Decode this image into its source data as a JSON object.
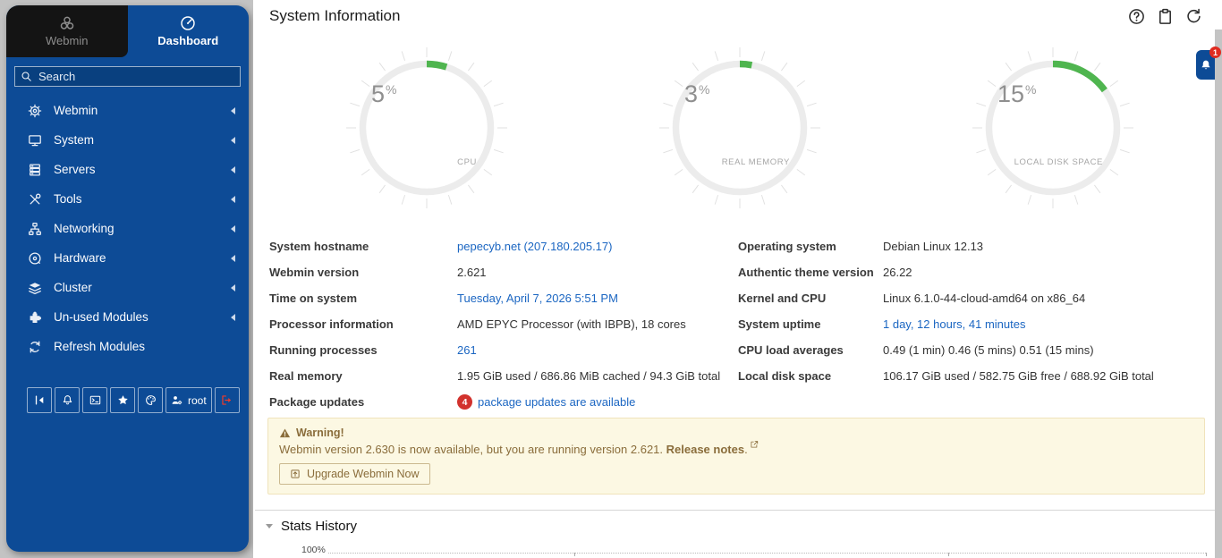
{
  "app": {
    "accent_color": "#0d4b96",
    "green_color": "#4fb54f",
    "link_color": "#1b66c2",
    "badge_color": "#d2322d"
  },
  "sidebar": {
    "tabs": [
      {
        "label": "Webmin",
        "icon": "webmin-logo-icon"
      },
      {
        "label": "Dashboard",
        "icon": "gauge-icon"
      }
    ],
    "search": {
      "placeholder": "Search",
      "icon": "search-icon"
    },
    "items": [
      {
        "label": "Webmin",
        "icon": "gear-icon",
        "arrow": true
      },
      {
        "label": "System",
        "icon": "monitor-icon",
        "arrow": true
      },
      {
        "label": "Servers",
        "icon": "servers-icon",
        "arrow": true
      },
      {
        "label": "Tools",
        "icon": "tools-icon",
        "arrow": true
      },
      {
        "label": "Networking",
        "icon": "network-icon",
        "arrow": true
      },
      {
        "label": "Hardware",
        "icon": "harddrive-icon",
        "arrow": true
      },
      {
        "label": "Cluster",
        "icon": "layers-icon",
        "arrow": true
      },
      {
        "label": "Un-used Modules",
        "icon": "puzzle-icon",
        "arrow": true
      },
      {
        "label": "Refresh Modules",
        "icon": "refresh-icon",
        "arrow": false
      }
    ],
    "footer": {
      "buttons": [
        {
          "name": "collapse-sidebar-button",
          "icon": "collapse-icon"
        },
        {
          "name": "notifications-config-button",
          "icon": "bell-gear-icon"
        },
        {
          "name": "terminal-button",
          "icon": "terminal-icon"
        },
        {
          "name": "favorites-button",
          "icon": "star-icon"
        },
        {
          "name": "theme-button",
          "icon": "palette-icon"
        },
        {
          "name": "user-menu-button",
          "icon": "user-gear-icon",
          "label": "root"
        },
        {
          "name": "logout-button",
          "icon": "logout-icon",
          "red": true
        }
      ]
    }
  },
  "main": {
    "title": "System Information",
    "actions": [
      {
        "name": "help-button",
        "icon": "help-icon"
      },
      {
        "name": "clipboard-button",
        "icon": "clipboard-icon"
      },
      {
        "name": "reload-button",
        "icon": "reload-icon"
      }
    ],
    "notifications": {
      "count": "1",
      "icon": "bell-icon"
    },
    "gauges": [
      {
        "value": 5,
        "suffix": "%",
        "label": "CPU"
      },
      {
        "value": 3,
        "suffix": "%",
        "label": "REAL MEMORY"
      },
      {
        "value": 15,
        "suffix": "%",
        "label": "LOCAL DISK SPACE"
      }
    ],
    "info": {
      "left": [
        {
          "label": "System hostname",
          "value": "pepecyb.net (207.180.205.17)",
          "link": true
        },
        {
          "label": "Webmin version",
          "value": "2.621"
        },
        {
          "label": "Time on system",
          "value": "Tuesday, April 7, 2026 5:51 PM",
          "link": true
        },
        {
          "label": "Processor information",
          "value": "AMD EPYC Processor (with IBPB), 18 cores"
        },
        {
          "label": "Running processes",
          "value": "261",
          "link": true
        },
        {
          "label": "Real memory",
          "value": "1.95 GiB used / 686.86 MiB cached / 94.3 GiB total"
        },
        {
          "label": "Package updates",
          "value": "package updates are available",
          "link": true,
          "badge": "4"
        }
      ],
      "right": [
        {
          "label": "Operating system",
          "value": "Debian Linux 12.13"
        },
        {
          "label": "Authentic theme version",
          "value": "26.22"
        },
        {
          "label": "Kernel and CPU",
          "value": "Linux 6.1.0-44-cloud-amd64 on x86_64"
        },
        {
          "label": "System uptime",
          "value": "1 day, 12 hours, 41 minutes",
          "link": true
        },
        {
          "label": "CPU load averages",
          "value": "0.49 (1 min) 0.46 (5 mins) 0.51 (15 mins)"
        },
        {
          "label": "Local disk space",
          "value": "106.17 GiB used / 582.75 GiB free / 688.92 GiB total"
        }
      ]
    },
    "warning": {
      "icon": "warning-icon",
      "title": "Warning!",
      "message": "Webmin version 2.630 is now available, but you are running version 2.621.",
      "link_label": "Release notes",
      "period": ".",
      "button": "Upgrade Webmin Now",
      "button_icon": "upgrade-icon"
    },
    "stats": {
      "title": "Stats History",
      "top_axis_label": "100%"
    }
  }
}
